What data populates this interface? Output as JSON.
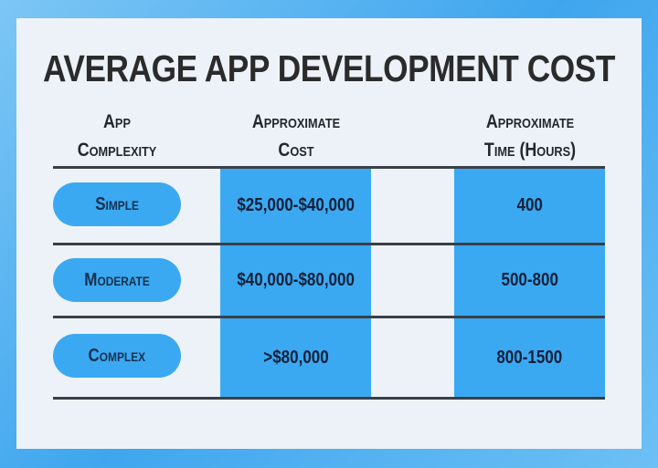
{
  "title": "AVERAGE APP DEVELOPMENT COST",
  "colors": {
    "accent": "#3ba9f1",
    "panel": "#edf2f8",
    "text": "#13203a"
  },
  "chart_data": {
    "type": "table",
    "title": "AVERAGE APP DEVELOPMENT COST",
    "columns": [
      {
        "line1": "App",
        "line2": "Complexity"
      },
      {
        "line1": "Approximate",
        "line2": "Cost"
      },
      {
        "line1": "Approximate",
        "line2": "Time (Hours)"
      }
    ],
    "rows": [
      {
        "complexity": "Simple",
        "cost": "$25,000-$40,000",
        "time": "400"
      },
      {
        "complexity": "Moderate",
        "cost": "$40,000-$80,000",
        "time": "500-800"
      },
      {
        "complexity": "Complex",
        "cost": ">$80,000",
        "time": "800-1500"
      }
    ]
  }
}
